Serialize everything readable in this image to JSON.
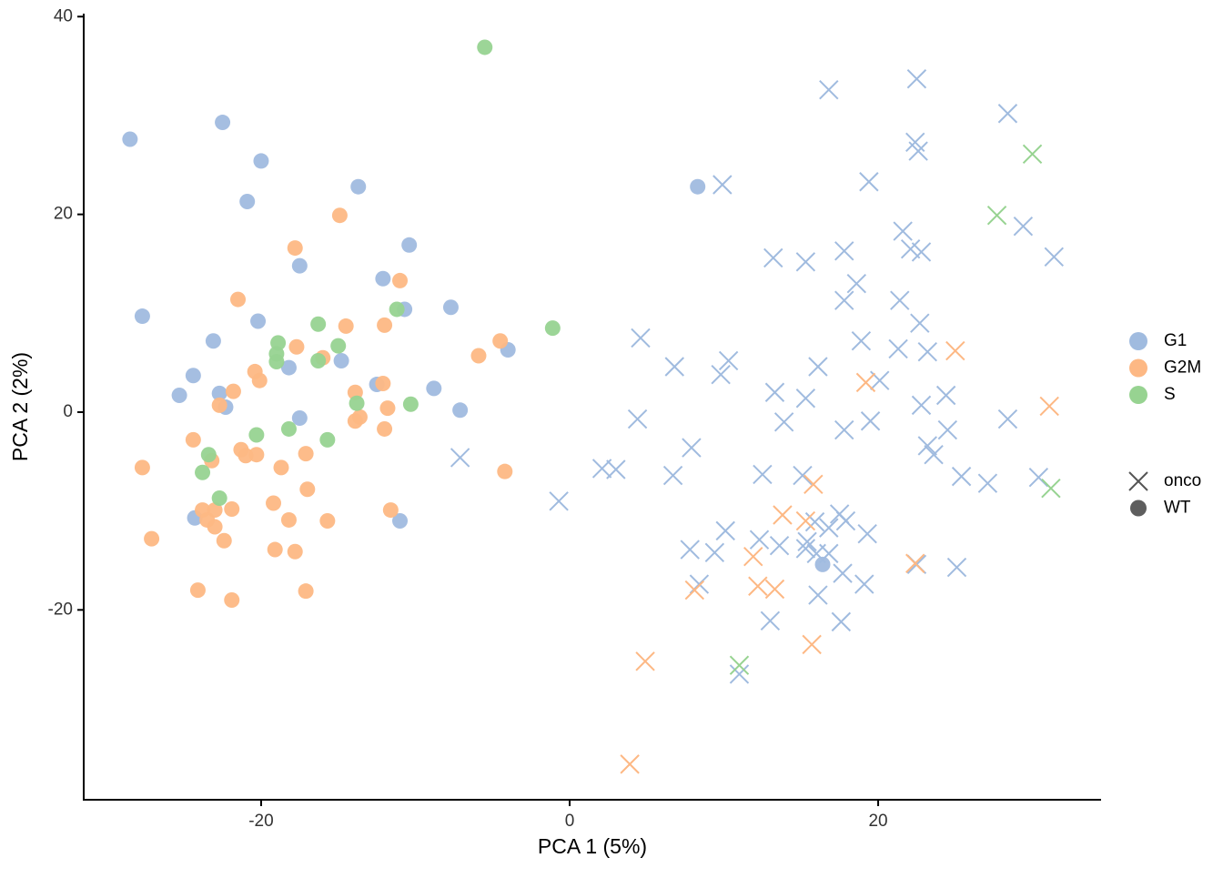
{
  "chart_data": {
    "type": "scatter",
    "x_label": "PCA 1 (5%)",
    "y_label": "PCA 2 (2%)",
    "xlim": [
      -31.5,
      34.45
    ],
    "ylim": [
      -39.2,
      40.3
    ],
    "xticks": [
      -20,
      0,
      20
    ],
    "yticks": [
      -20,
      0,
      20,
      40
    ],
    "grid": false,
    "shapes": [
      {
        "name": "onco",
        "marker": "x"
      },
      {
        "name": "WT",
        "marker": "circle"
      }
    ],
    "series": [
      {
        "name": "G1",
        "color": "#a0bbdf",
        "x": [
          -28.5,
          -22.5,
          -20.0,
          -13.7,
          -20.9,
          -10.4,
          -17.5,
          -12.1,
          -27.7,
          -10.7,
          -7.7,
          -20.2,
          -23.1,
          -4.0,
          -24.4,
          -18.2,
          -14.8,
          -25.3,
          -22.7,
          -22.3,
          -12.5,
          -8.8,
          -7.1,
          -17.5,
          -24.3,
          -11.0,
          8.3,
          22.5,
          16.8,
          28.4,
          22.4,
          22.6,
          9.9,
          19.4,
          29.4,
          21.6,
          31.4,
          22.1,
          22.8,
          17.8,
          13.2,
          15.3,
          18.6,
          17.8,
          21.4,
          22.7,
          4.6,
          18.9,
          21.3,
          23.2,
          6.8,
          10.3,
          9.8,
          16.1,
          20.1,
          13.3,
          15.3,
          24.4,
          22.8,
          13.9,
          19.5,
          4.4,
          28.4,
          17.8,
          24.5,
          23.2,
          23.6,
          7.9,
          -7.1,
          2.1,
          3.0,
          6.7,
          12.5,
          15.1,
          25.4,
          27.1,
          30.4,
          -0.7,
          17.5,
          15.9,
          17.9,
          16.8,
          10.1,
          12.3,
          19.3,
          15.4,
          7.8,
          9.4,
          13.6,
          15.3,
          16.8,
          8.4,
          16.0,
          17.7,
          19.1,
          16.1,
          22.5,
          25.1,
          13.0,
          17.6,
          11.0,
          16.4
        ],
        "values": [
          27.6,
          29.3,
          25.4,
          22.8,
          21.3,
          16.9,
          14.8,
          13.5,
          9.7,
          10.4,
          10.6,
          9.2,
          7.2,
          6.3,
          3.7,
          4.5,
          5.2,
          1.7,
          1.9,
          0.5,
          2.8,
          2.4,
          0.2,
          -0.6,
          -10.7,
          -11.0,
          22.8,
          33.7,
          32.6,
          30.2,
          27.3,
          26.4,
          23.0,
          23.3,
          18.8,
          18.3,
          15.7,
          16.5,
          16.2,
          16.3,
          15.6,
          15.2,
          13.0,
          11.3,
          11.3,
          9.0,
          7.5,
          7.2,
          6.4,
          6.1,
          4.6,
          5.2,
          3.8,
          4.6,
          3.2,
          2.0,
          1.4,
          1.7,
          0.7,
          -1.0,
          -0.9,
          -0.7,
          -0.7,
          -1.8,
          -1.8,
          -3.4,
          -4.3,
          -3.6,
          -4.6,
          -5.7,
          -5.8,
          -6.4,
          -6.3,
          -6.4,
          -6.5,
          -7.2,
          -6.6,
          -9.0,
          -10.3,
          -11.1,
          -11.0,
          -11.7,
          -12.0,
          -12.9,
          -12.3,
          -13.1,
          -13.9,
          -14.2,
          -13.5,
          -13.8,
          -14.3,
          -17.4,
          -14.3,
          -16.3,
          -17.4,
          -18.5,
          -15.4,
          -15.7,
          -21.1,
          -21.2,
          -26.5,
          -15.4
        ],
        "shape": [
          "WT",
          "WT",
          "WT",
          "WT",
          "WT",
          "WT",
          "WT",
          "WT",
          "WT",
          "WT",
          "WT",
          "WT",
          "WT",
          "WT",
          "WT",
          "WT",
          "WT",
          "WT",
          "WT",
          "WT",
          "WT",
          "WT",
          "WT",
          "WT",
          "WT",
          "WT",
          "WT",
          "onco",
          "onco",
          "onco",
          "onco",
          "onco",
          "onco",
          "onco",
          "onco",
          "onco",
          "onco",
          "onco",
          "onco",
          "onco",
          "onco",
          "onco",
          "onco",
          "onco",
          "onco",
          "onco",
          "onco",
          "onco",
          "onco",
          "onco",
          "onco",
          "onco",
          "onco",
          "onco",
          "onco",
          "onco",
          "onco",
          "onco",
          "onco",
          "onco",
          "onco",
          "onco",
          "onco",
          "onco",
          "onco",
          "onco",
          "onco",
          "onco",
          "onco",
          "onco",
          "onco",
          "onco",
          "onco",
          "onco",
          "onco",
          "onco",
          "onco",
          "onco",
          "onco",
          "onco",
          "onco",
          "onco",
          "onco",
          "onco",
          "onco",
          "onco",
          "onco",
          "onco",
          "onco",
          "onco",
          "onco",
          "onco",
          "onco",
          "onco",
          "onco",
          "onco",
          "onco",
          "onco",
          "onco",
          "onco",
          "onco"
        ]
      },
      {
        "name": "G2M",
        "color": "#fdb884",
        "x": [
          -14.9,
          -17.8,
          -11.0,
          -21.5,
          -14.5,
          -12.0,
          -4.5,
          -17.7,
          -5.9,
          -16.0,
          -20.4,
          -20.1,
          -12.1,
          -21.8,
          -13.9,
          -22.7,
          -11.8,
          -13.6,
          -13.9,
          -12.0,
          -24.4,
          -21.3,
          -17.1,
          -20.3,
          -21.0,
          -23.2,
          -27.7,
          -18.7,
          -4.2,
          -17.0,
          -19.2,
          -21.9,
          -23.8,
          -23.0,
          -11.6,
          -23.5,
          -18.2,
          -15.7,
          -23.0,
          -27.1,
          -22.4,
          -19.1,
          -17.8,
          -24.1,
          -17.1,
          -21.9,
          25.0,
          19.2,
          31.1,
          15.8,
          13.8,
          15.3,
          11.9,
          22.4,
          12.2,
          13.3,
          8.1,
          15.7,
          4.9,
          3.9
        ],
        "values": [
          19.9,
          16.6,
          13.3,
          11.4,
          8.7,
          8.8,
          7.2,
          6.6,
          5.7,
          5.5,
          4.1,
          3.2,
          2.9,
          2.1,
          2.0,
          0.7,
          0.4,
          -0.5,
          -0.9,
          -1.7,
          -2.8,
          -3.8,
          -4.2,
          -4.3,
          -4.4,
          -4.9,
          -5.6,
          -5.6,
          -6.0,
          -7.8,
          -9.2,
          -9.8,
          -9.9,
          -9.9,
          -9.9,
          -10.9,
          -10.9,
          -11.0,
          -11.6,
          -12.8,
          -13.0,
          -13.9,
          -14.1,
          -18.0,
          -18.1,
          -19.0,
          6.2,
          3.0,
          0.6,
          -7.3,
          -10.4,
          -11.0,
          -14.6,
          -15.3,
          -17.6,
          -17.9,
          -18.0,
          -23.5,
          -25.2,
          -35.6
        ],
        "shape": [
          "WT",
          "WT",
          "WT",
          "WT",
          "WT",
          "WT",
          "WT",
          "WT",
          "WT",
          "WT",
          "WT",
          "WT",
          "WT",
          "WT",
          "WT",
          "WT",
          "WT",
          "WT",
          "WT",
          "WT",
          "WT",
          "WT",
          "WT",
          "WT",
          "WT",
          "WT",
          "WT",
          "WT",
          "WT",
          "WT",
          "WT",
          "WT",
          "WT",
          "WT",
          "WT",
          "WT",
          "WT",
          "WT",
          "WT",
          "WT",
          "WT",
          "WT",
          "WT",
          "WT",
          "WT",
          "WT",
          "onco",
          "onco",
          "onco",
          "onco",
          "onco",
          "onco",
          "onco",
          "onco",
          "onco",
          "onco",
          "onco",
          "onco",
          "onco",
          "onco"
        ]
      },
      {
        "name": "S",
        "color": "#97d391",
        "x": [
          -5.5,
          -1.1,
          -11.2,
          -16.3,
          -18.9,
          -15.0,
          -19.0,
          -19.0,
          -16.3,
          -13.8,
          -10.3,
          -20.3,
          -18.2,
          -15.7,
          -23.4,
          -23.8,
          -22.7,
          30.0,
          27.7,
          31.2,
          11.0
        ],
        "values": [
          36.9,
          8.5,
          10.4,
          8.9,
          7.0,
          6.7,
          5.9,
          5.1,
          5.2,
          0.9,
          0.8,
          -2.3,
          -1.7,
          -2.8,
          -4.3,
          -6.1,
          -8.7,
          26.1,
          19.9,
          -7.7,
          -25.6
        ],
        "shape": [
          "WT",
          "WT",
          "WT",
          "WT",
          "WT",
          "WT",
          "WT",
          "WT",
          "WT",
          "WT",
          "WT",
          "WT",
          "WT",
          "WT",
          "WT",
          "WT",
          "WT",
          "onco",
          "onco",
          "onco",
          "onco"
        ]
      }
    ]
  }
}
